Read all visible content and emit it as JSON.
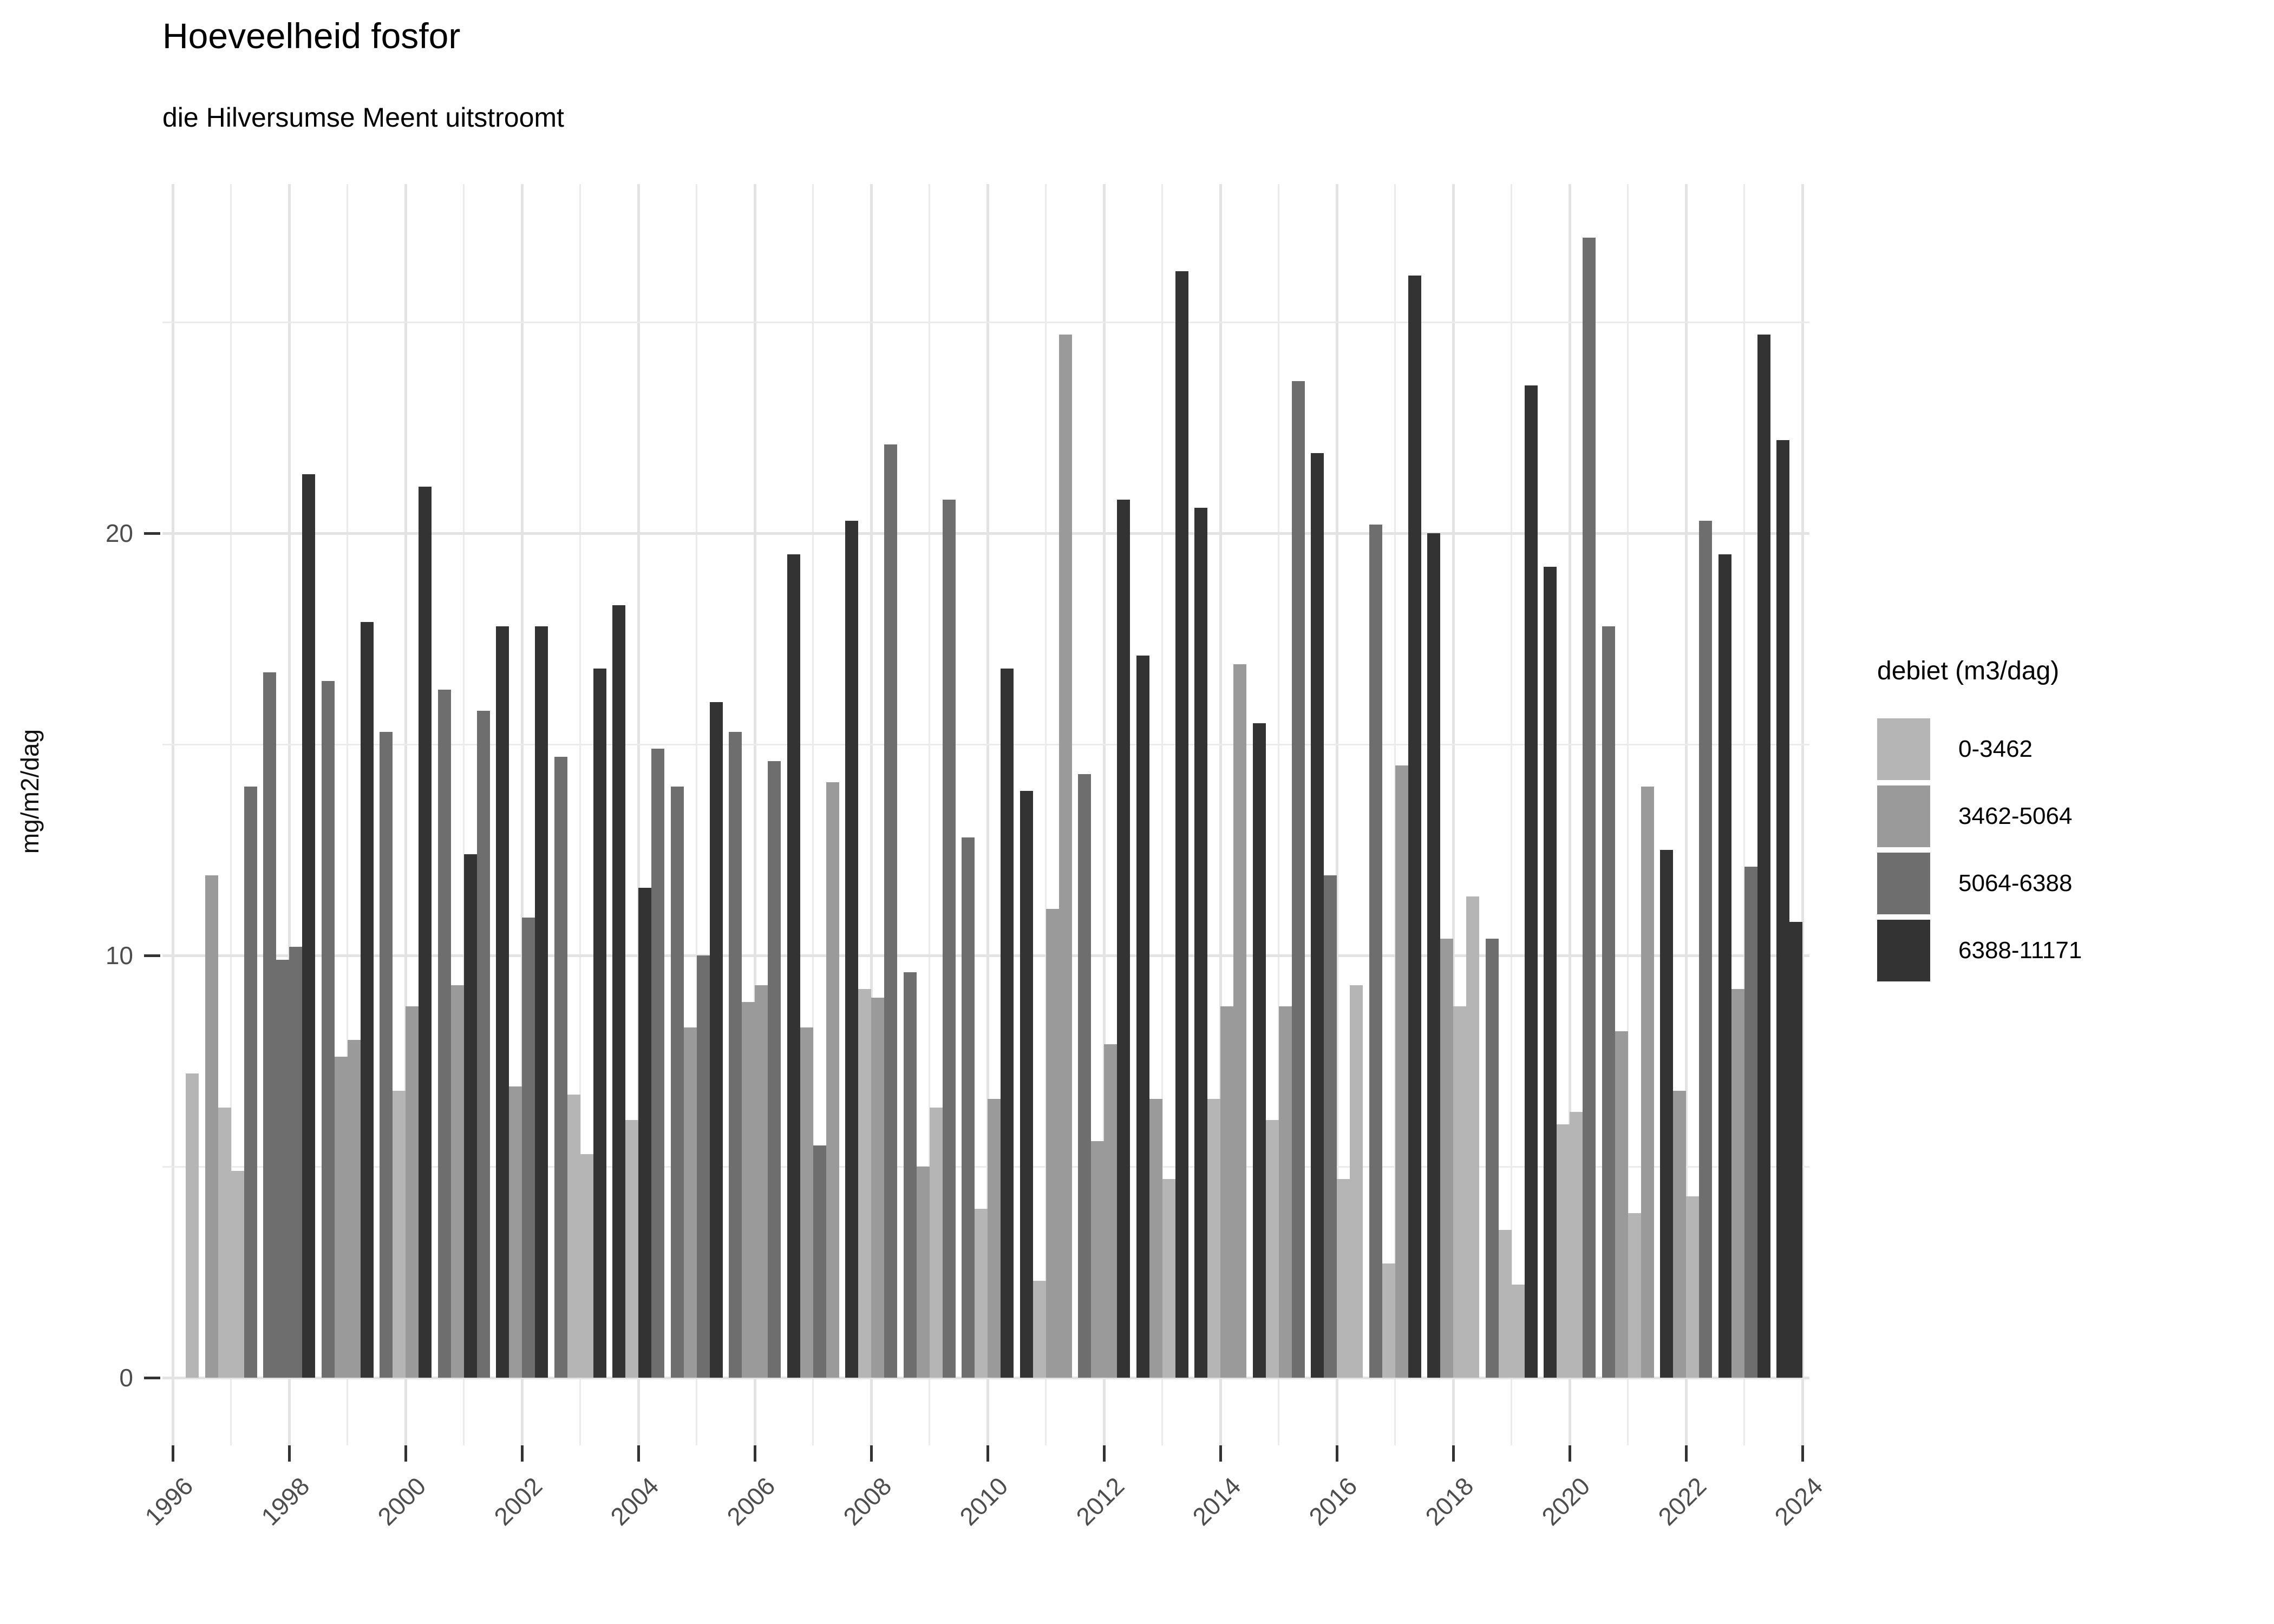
{
  "chart_data": {
    "type": "bar",
    "title": "Hoeveelheid fosfor",
    "subtitle": "die Hilversumse Meent uitstroomt",
    "ylabel": "mg/m2/dag",
    "x_tick_years": [
      1996,
      1998,
      2000,
      2002,
      2004,
      2006,
      2008,
      2010,
      2012,
      2014,
      2016,
      2018,
      2020,
      2022,
      2024
    ],
    "x_year_range": [
      1996,
      2024
    ],
    "y_ticks": [
      0,
      10,
      20
    ],
    "y_minor_ticks": [
      5,
      15,
      25
    ],
    "ylim": [
      0,
      28.3
    ],
    "grid": true,
    "legend_position": "right",
    "legend": {
      "title": "debiet (m3/dag)",
      "categories": [
        {
          "label": "0-3462",
          "color": "#b5b5b5"
        },
        {
          "label": "3462-5064",
          "color": "#9a9a9a"
        },
        {
          "label": "5064-6388",
          "color": "#6e6e6e"
        },
        {
          "label": "6388-11171",
          "color": "#333333"
        }
      ]
    },
    "bars_note": "quarterly values; q=1..4 within each year; cat = index into legend.categories",
    "bars": [
      {
        "year": 1996,
        "q": 4,
        "v": 7.2,
        "cat": 0
      },
      {
        "year": 1997,
        "q": 1,
        "v": 11.9,
        "cat": 1
      },
      {
        "year": 1997,
        "q": 2,
        "v": 6.4,
        "cat": 0
      },
      {
        "year": 1997,
        "q": 3,
        "v": 4.9,
        "cat": 0
      },
      {
        "year": 1997,
        "q": 4,
        "v": 14.0,
        "cat": 2
      },
      {
        "year": 1998,
        "q": 1,
        "v": 16.7,
        "cat": 2
      },
      {
        "year": 1998,
        "q": 2,
        "v": 9.9,
        "cat": 2
      },
      {
        "year": 1998,
        "q": 3,
        "v": 10.2,
        "cat": 2
      },
      {
        "year": 1998,
        "q": 4,
        "v": 21.4,
        "cat": 3
      },
      {
        "year": 1999,
        "q": 1,
        "v": 16.5,
        "cat": 2
      },
      {
        "year": 1999,
        "q": 2,
        "v": 7.6,
        "cat": 1
      },
      {
        "year": 1999,
        "q": 3,
        "v": 8.0,
        "cat": 1
      },
      {
        "year": 1999,
        "q": 4,
        "v": 17.9,
        "cat": 3
      },
      {
        "year": 2000,
        "q": 1,
        "v": 15.3,
        "cat": 2
      },
      {
        "year": 2000,
        "q": 2,
        "v": 6.8,
        "cat": 0
      },
      {
        "year": 2000,
        "q": 3,
        "v": 8.8,
        "cat": 1
      },
      {
        "year": 2000,
        "q": 4,
        "v": 21.1,
        "cat": 3
      },
      {
        "year": 2001,
        "q": 1,
        "v": 16.3,
        "cat": 2
      },
      {
        "year": 2001,
        "q": 2,
        "v": 9.3,
        "cat": 1
      },
      {
        "year": 2001,
        "q": 3,
        "v": 12.4,
        "cat": 3
      },
      {
        "year": 2001,
        "q": 4,
        "v": 15.8,
        "cat": 2
      },
      {
        "year": 2002,
        "q": 1,
        "v": 17.8,
        "cat": 3
      },
      {
        "year": 2002,
        "q": 2,
        "v": 6.9,
        "cat": 1
      },
      {
        "year": 2002,
        "q": 3,
        "v": 10.9,
        "cat": 2
      },
      {
        "year": 2002,
        "q": 4,
        "v": 17.8,
        "cat": 3
      },
      {
        "year": 2003,
        "q": 1,
        "v": 14.7,
        "cat": 2
      },
      {
        "year": 2003,
        "q": 2,
        "v": 6.7,
        "cat": 0
      },
      {
        "year": 2003,
        "q": 3,
        "v": 5.3,
        "cat": 0
      },
      {
        "year": 2003,
        "q": 4,
        "v": 16.8,
        "cat": 3
      },
      {
        "year": 2004,
        "q": 1,
        "v": 18.3,
        "cat": 3
      },
      {
        "year": 2004,
        "q": 2,
        "v": 6.1,
        "cat": 0
      },
      {
        "year": 2004,
        "q": 3,
        "v": 11.6,
        "cat": 3
      },
      {
        "year": 2004,
        "q": 4,
        "v": 14.9,
        "cat": 2
      },
      {
        "year": 2005,
        "q": 1,
        "v": 14.0,
        "cat": 2
      },
      {
        "year": 2005,
        "q": 2,
        "v": 8.3,
        "cat": 1
      },
      {
        "year": 2005,
        "q": 3,
        "v": 10.0,
        "cat": 2
      },
      {
        "year": 2005,
        "q": 4,
        "v": 16.0,
        "cat": 3
      },
      {
        "year": 2006,
        "q": 1,
        "v": 15.3,
        "cat": 2
      },
      {
        "year": 2006,
        "q": 2,
        "v": 8.9,
        "cat": 1
      },
      {
        "year": 2006,
        "q": 3,
        "v": 9.3,
        "cat": 1
      },
      {
        "year": 2006,
        "q": 4,
        "v": 14.6,
        "cat": 2
      },
      {
        "year": 2007,
        "q": 1,
        "v": 19.5,
        "cat": 3
      },
      {
        "year": 2007,
        "q": 2,
        "v": 8.3,
        "cat": 1
      },
      {
        "year": 2007,
        "q": 3,
        "v": 5.5,
        "cat": 2
      },
      {
        "year": 2007,
        "q": 4,
        "v": 14.1,
        "cat": 1
      },
      {
        "year": 2008,
        "q": 1,
        "v": 20.3,
        "cat": 3
      },
      {
        "year": 2008,
        "q": 2,
        "v": 9.2,
        "cat": 0
      },
      {
        "year": 2008,
        "q": 3,
        "v": 9.0,
        "cat": 1
      },
      {
        "year": 2008,
        "q": 4,
        "v": 22.1,
        "cat": 2
      },
      {
        "year": 2009,
        "q": 1,
        "v": 9.6,
        "cat": 2
      },
      {
        "year": 2009,
        "q": 2,
        "v": 5.0,
        "cat": 1
      },
      {
        "year": 2009,
        "q": 3,
        "v": 6.4,
        "cat": 0
      },
      {
        "year": 2009,
        "q": 4,
        "v": 20.8,
        "cat": 2
      },
      {
        "year": 2010,
        "q": 1,
        "v": 12.8,
        "cat": 2
      },
      {
        "year": 2010,
        "q": 2,
        "v": 4.0,
        "cat": 0
      },
      {
        "year": 2010,
        "q": 3,
        "v": 6.6,
        "cat": 1
      },
      {
        "year": 2010,
        "q": 4,
        "v": 16.8,
        "cat": 3
      },
      {
        "year": 2011,
        "q": 1,
        "v": 13.9,
        "cat": 3
      },
      {
        "year": 2011,
        "q": 2,
        "v": 2.3,
        "cat": 0
      },
      {
        "year": 2011,
        "q": 3,
        "v": 11.1,
        "cat": 1
      },
      {
        "year": 2011,
        "q": 4,
        "v": 24.7,
        "cat": 1
      },
      {
        "year": 2012,
        "q": 1,
        "v": 14.3,
        "cat": 2
      },
      {
        "year": 2012,
        "q": 2,
        "v": 5.6,
        "cat": 1
      },
      {
        "year": 2012,
        "q": 3,
        "v": 7.9,
        "cat": 1
      },
      {
        "year": 2012,
        "q": 4,
        "v": 20.8,
        "cat": 3
      },
      {
        "year": 2013,
        "q": 1,
        "v": 17.1,
        "cat": 3
      },
      {
        "year": 2013,
        "q": 2,
        "v": 6.6,
        "cat": 1
      },
      {
        "year": 2013,
        "q": 3,
        "v": 4.7,
        "cat": 0
      },
      {
        "year": 2013,
        "q": 4,
        "v": 26.2,
        "cat": 3
      },
      {
        "year": 2014,
        "q": 1,
        "v": 20.6,
        "cat": 3
      },
      {
        "year": 2014,
        "q": 2,
        "v": 6.6,
        "cat": 0
      },
      {
        "year": 2014,
        "q": 3,
        "v": 8.8,
        "cat": 1
      },
      {
        "year": 2014,
        "q": 4,
        "v": 16.9,
        "cat": 1
      },
      {
        "year": 2015,
        "q": 1,
        "v": 15.5,
        "cat": 3
      },
      {
        "year": 2015,
        "q": 2,
        "v": 6.1,
        "cat": 0
      },
      {
        "year": 2015,
        "q": 3,
        "v": 8.8,
        "cat": 1
      },
      {
        "year": 2015,
        "q": 4,
        "v": 23.6,
        "cat": 2
      },
      {
        "year": 2016,
        "q": 1,
        "v": 21.9,
        "cat": 3
      },
      {
        "year": 2016,
        "q": 2,
        "v": 11.9,
        "cat": 2
      },
      {
        "year": 2016,
        "q": 3,
        "v": 4.7,
        "cat": 0
      },
      {
        "year": 2016,
        "q": 4,
        "v": 9.3,
        "cat": 0
      },
      {
        "year": 2017,
        "q": 1,
        "v": 20.2,
        "cat": 2
      },
      {
        "year": 2017,
        "q": 2,
        "v": 2.7,
        "cat": 0
      },
      {
        "year": 2017,
        "q": 3,
        "v": 14.5,
        "cat": 1
      },
      {
        "year": 2017,
        "q": 4,
        "v": 26.1,
        "cat": 3
      },
      {
        "year": 2018,
        "q": 1,
        "v": 20.0,
        "cat": 3
      },
      {
        "year": 2018,
        "q": 2,
        "v": 10.4,
        "cat": 1
      },
      {
        "year": 2018,
        "q": 3,
        "v": 8.8,
        "cat": 0
      },
      {
        "year": 2018,
        "q": 4,
        "v": 11.4,
        "cat": 0
      },
      {
        "year": 2019,
        "q": 1,
        "v": 10.4,
        "cat": 2
      },
      {
        "year": 2019,
        "q": 2,
        "v": 3.5,
        "cat": 0
      },
      {
        "year": 2019,
        "q": 3,
        "v": 2.2,
        "cat": 0
      },
      {
        "year": 2019,
        "q": 4,
        "v": 23.5,
        "cat": 3
      },
      {
        "year": 2020,
        "q": 1,
        "v": 19.2,
        "cat": 3
      },
      {
        "year": 2020,
        "q": 2,
        "v": 6.0,
        "cat": 0
      },
      {
        "year": 2020,
        "q": 3,
        "v": 6.3,
        "cat": 0
      },
      {
        "year": 2020,
        "q": 4,
        "v": 27.0,
        "cat": 2
      },
      {
        "year": 2021,
        "q": 1,
        "v": 17.8,
        "cat": 2
      },
      {
        "year": 2021,
        "q": 2,
        "v": 8.2,
        "cat": 1
      },
      {
        "year": 2021,
        "q": 3,
        "v": 3.9,
        "cat": 0
      },
      {
        "year": 2021,
        "q": 4,
        "v": 14.0,
        "cat": 1
      },
      {
        "year": 2022,
        "q": 1,
        "v": 12.5,
        "cat": 3
      },
      {
        "year": 2022,
        "q": 2,
        "v": 6.8,
        "cat": 1
      },
      {
        "year": 2022,
        "q": 3,
        "v": 4.3,
        "cat": 0
      },
      {
        "year": 2022,
        "q": 4,
        "v": 20.3,
        "cat": 2
      },
      {
        "year": 2023,
        "q": 1,
        "v": 19.5,
        "cat": 3
      },
      {
        "year": 2023,
        "q": 2,
        "v": 9.2,
        "cat": 1
      },
      {
        "year": 2023,
        "q": 3,
        "v": 12.1,
        "cat": 2
      },
      {
        "year": 2023,
        "q": 4,
        "v": 24.7,
        "cat": 3
      },
      {
        "year": 2024,
        "q": 1,
        "v": 22.2,
        "cat": 3
      },
      {
        "year": 2024,
        "q": 2,
        "v": 10.8,
        "cat": 3
      }
    ]
  }
}
